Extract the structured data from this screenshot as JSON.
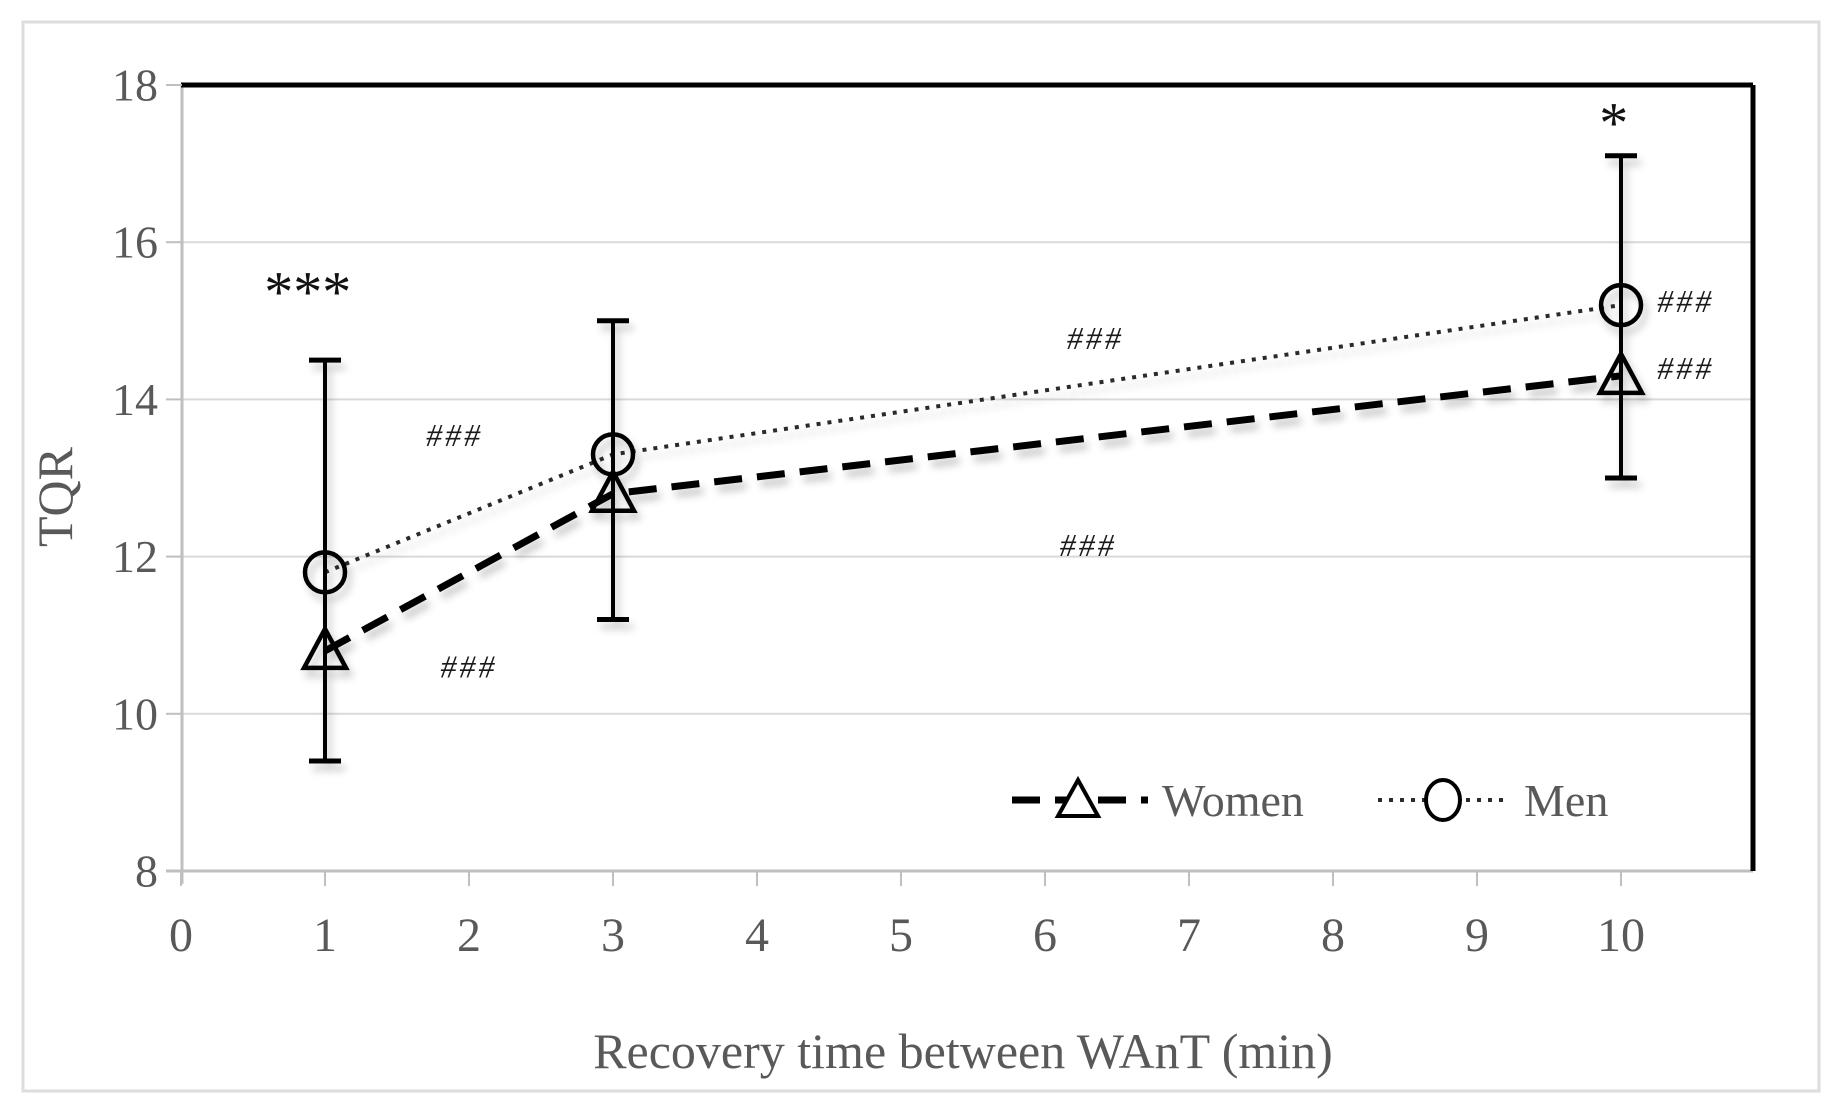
{
  "figure": {
    "background": "#ffffff",
    "border_color": "#dddddd"
  },
  "chart_data": {
    "type": "line",
    "title": "",
    "xlabel": "Recovery time between WAnT (min)",
    "ylabel": "TQR",
    "xlim": [
      0,
      10.92
    ],
    "ylim": [
      8,
      18
    ],
    "xticks": [
      0,
      1,
      2,
      3,
      4,
      5,
      6,
      7,
      8,
      9,
      10
    ],
    "yticks": [
      8,
      10,
      12,
      14,
      16,
      18
    ],
    "grid_y": [
      10,
      12,
      14,
      16
    ],
    "grid_on": true,
    "legend_position": "inside-bottom-right",
    "x": [
      1,
      3,
      10
    ],
    "series": [
      {
        "name": "Women",
        "marker": "triangle",
        "line": "dashed",
        "values": [
          10.8,
          12.8,
          14.3
        ]
      },
      {
        "name": "Men",
        "marker": "circle",
        "line": "dotted",
        "values": [
          11.8,
          13.3,
          15.2
        ]
      }
    ],
    "error_bars": [
      {
        "x": 1,
        "top": 14.5,
        "bottom": 9.4
      },
      {
        "x": 3,
        "top": 15.0,
        "bottom": 11.2
      },
      {
        "x": 10,
        "top": 17.1,
        "bottom": 13.0
      }
    ],
    "annotations": [
      {
        "text": "***",
        "x": 0.88,
        "y": 15.4,
        "size": "large"
      },
      {
        "text": "*",
        "x": 9.95,
        "y": 17.55,
        "size": "large"
      },
      {
        "text": "###",
        "x": 1.9,
        "y": 13.55,
        "size": "small"
      },
      {
        "text": "###",
        "x": 2.0,
        "y": 10.6,
        "size": "small"
      },
      {
        "text": "###",
        "x": 6.35,
        "y": 14.78,
        "size": "small"
      },
      {
        "text": "###",
        "x": 6.3,
        "y": 12.15,
        "size": "small"
      },
      {
        "text": "###",
        "x": 10.45,
        "y": 15.25,
        "size": "small"
      },
      {
        "text": "###",
        "x": 10.45,
        "y": 14.4,
        "size": "small"
      }
    ],
    "colors": {
      "axis_text": "#595959",
      "grid": "#d9d9d9",
      "axis_line": "#bfbfbf",
      "series_line": "#000000",
      "dotted_line": "#2b2b2b",
      "plot_border_dark": "#000000"
    }
  }
}
